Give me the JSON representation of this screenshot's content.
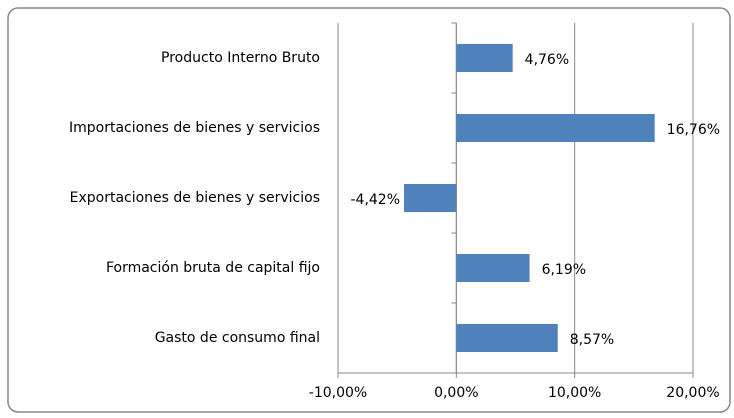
{
  "chart_data": {
    "type": "bar",
    "orientation": "horizontal",
    "categories": [
      "Producto Interno Bruto",
      "Importaciones de bienes y servicios",
      "Exportaciones de bienes y servicios",
      "Formación bruta de capital fijo",
      "Gasto de consumo final"
    ],
    "values": [
      4.76,
      16.76,
      -4.42,
      6.19,
      8.57
    ],
    "value_labels": [
      "4,76%",
      "16,76%",
      "-4,42%",
      "6,19%",
      "8,57%"
    ],
    "color": "#4f81bd",
    "xlim": [
      -10,
      20
    ],
    "xticks": [
      {
        "value": -10,
        "label": "-10,00%"
      },
      {
        "value": 0,
        "label": "0,00%"
      },
      {
        "value": 10,
        "label": "10,00%"
      },
      {
        "value": 20,
        "label": "20,00%"
      }
    ],
    "grid": true
  }
}
